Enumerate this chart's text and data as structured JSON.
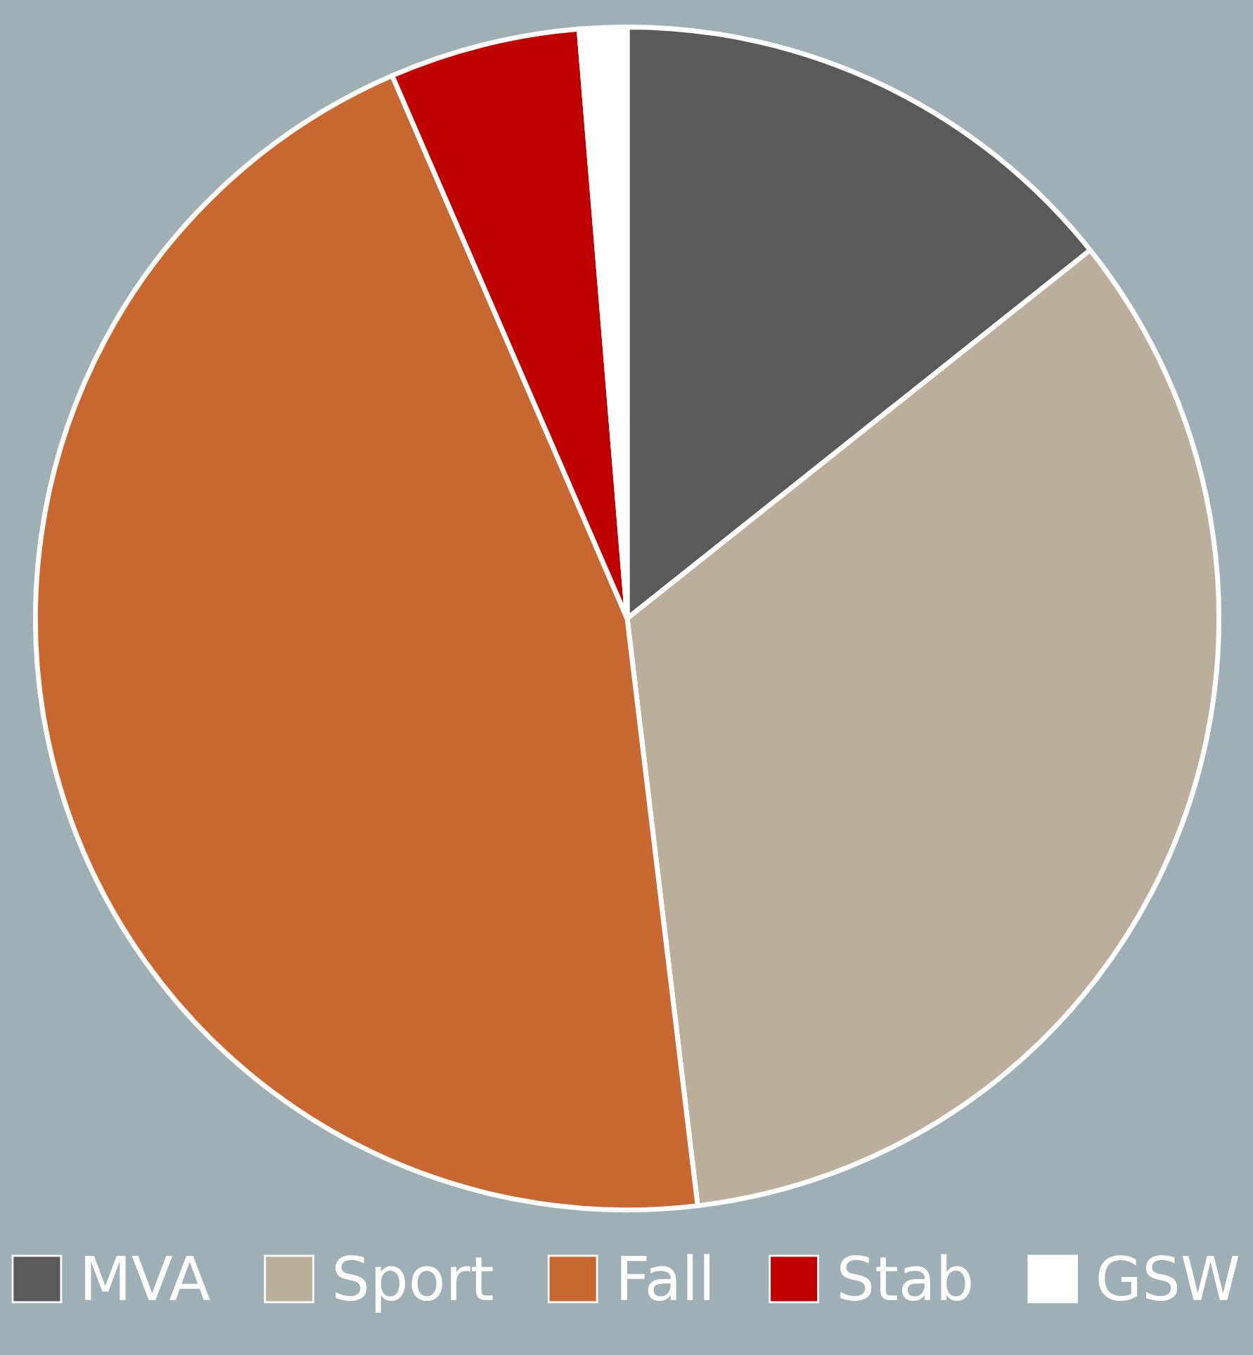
{
  "chart_data": {
    "type": "pie",
    "categories": [
      "MVA",
      "Sport",
      "Fall",
      "Stab",
      "GSW"
    ],
    "values": [
      14.3,
      33.8,
      45.4,
      5.2,
      1.3
    ],
    "colors": [
      "#5a5a5a",
      "#bbaf9b",
      "#c86830",
      "#c00000",
      "#ffffff"
    ],
    "legend": "bottom"
  }
}
